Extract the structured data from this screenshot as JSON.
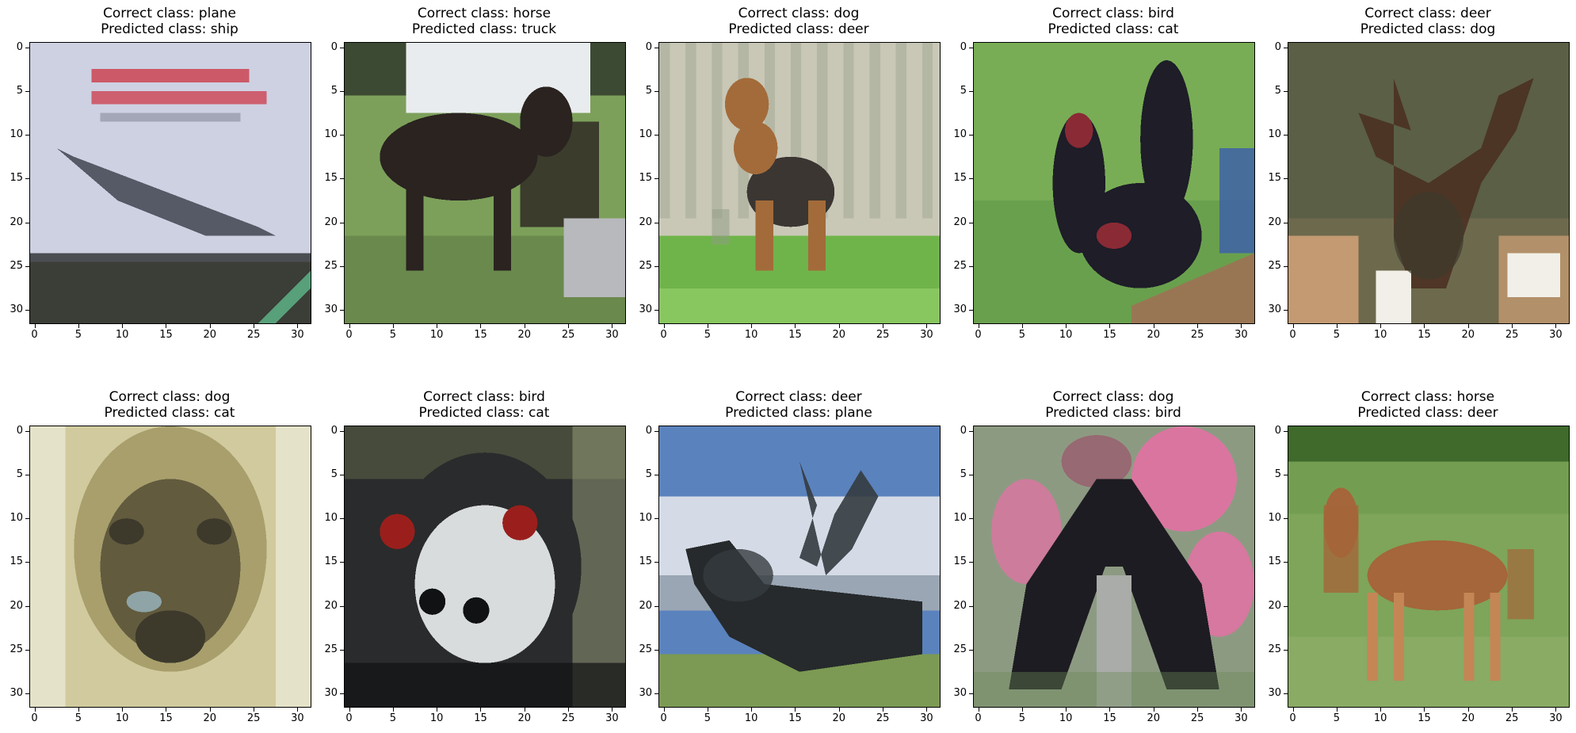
{
  "figure": {
    "rows": 2,
    "cols": 5,
    "axis": {
      "xlim": [
        -0.5,
        31.5
      ],
      "ylim": [
        31.5,
        -0.5
      ],
      "xticks": [
        0,
        5,
        10,
        15,
        20,
        25,
        30
      ],
      "yticks": [
        0,
        5,
        10,
        15,
        20,
        25,
        30
      ],
      "tick_labels": [
        "0",
        "5",
        "10",
        "15",
        "20",
        "25",
        "30"
      ]
    },
    "panels": [
      {
        "correct_label": "Correct class: plane",
        "predicted_label": "Predicted class: ship",
        "scene": "plane",
        "colors": {
          "a": "#d9d9e8",
          "b": "#c9cde0",
          "c": "#555a66",
          "d": "#3b3d37",
          "e": "#cc4b5a",
          "f": "#57a07a"
        }
      },
      {
        "correct_label": "Correct class: horse",
        "predicted_label": "Predicted class: truck",
        "scene": "horse-dark",
        "colors": {
          "a": "#7ca05a",
          "b": "#e9ecee",
          "c": "#2a2320",
          "d": "#3d4a33",
          "e": "#b7b9bc",
          "f": "#5f7a45"
        }
      },
      {
        "correct_label": "Correct class: dog",
        "predicted_label": "Predicted class: deer",
        "scene": "dog-yard",
        "colors": {
          "a": "#c9c7b6",
          "b": "#6fb44a",
          "c": "#a36b3a",
          "d": "#3b3632",
          "e": "#8f9c86",
          "f": "#88c660"
        }
      },
      {
        "correct_label": "Correct class: bird",
        "predicted_label": "Predicted class: cat",
        "scene": "rooster",
        "colors": {
          "a": "#78ad55",
          "b": "#5f9848",
          "c": "#1e1d28",
          "d": "#8a2a35",
          "e": "#3e62a8",
          "f": "#a56b55"
        }
      },
      {
        "correct_label": "Correct class: deer",
        "predicted_label": "Predicted class: dog",
        "scene": "deer-antlers",
        "colors": {
          "a": "#5a5f46",
          "b": "#7f7354",
          "c": "#4a2e20",
          "d": "#c39a72",
          "e": "#f2efe8",
          "f": "#3d3a2c"
        }
      },
      {
        "correct_label": "Correct class: dog",
        "predicted_label": "Predicted class: cat",
        "scene": "dog-face",
        "colors": {
          "a": "#e4e2c8",
          "b": "#a89f6c",
          "c": "#3d3a2c",
          "d": "#625b3e",
          "e": "#8fa4a6",
          "f": "#c9c08c"
        }
      },
      {
        "correct_label": "Correct class: bird",
        "predicted_label": "Predicted class: cat",
        "scene": "emu",
        "colors": {
          "a": "#5a6046",
          "b": "#2a2b2c",
          "c": "#d8dcdc",
          "d": "#9a1f1c",
          "e": "#111214",
          "f": "#99a27e"
        }
      },
      {
        "correct_label": "Correct class: deer",
        "predicted_label": "Predicted class: plane",
        "scene": "deer-sky",
        "colors": {
          "a": "#5a82bd",
          "b": "#d4dbe6",
          "c": "#343b3f",
          "d": "#9aa6b4",
          "e": "#7c9a53",
          "f": "#262a2c"
        }
      },
      {
        "correct_label": "Correct class: dog",
        "predicted_label": "Predicted class: bird",
        "scene": "dog-flowers",
        "colors": {
          "a": "#8d9a82",
          "b": "#e86fa6",
          "c": "#1d1c22",
          "d": "#a9aca8",
          "e": "#9a5c6e",
          "f": "#6b8a58"
        }
      },
      {
        "correct_label": "Correct class: horse",
        "predicted_label": "Predicted class: deer",
        "scene": "horse-field",
        "colors": {
          "a": "#7ea55a",
          "b": "#3f6a2c",
          "c": "#a4663a",
          "d": "#6c9a4c",
          "e": "#c48655",
          "f": "#94b26e"
        }
      }
    ]
  }
}
